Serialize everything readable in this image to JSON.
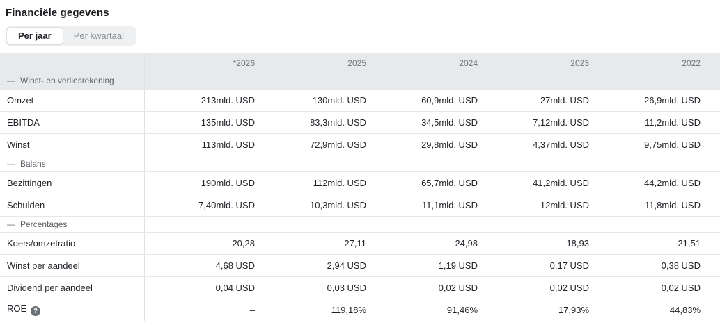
{
  "title": "Financiële gegevens",
  "tabs": {
    "per_jaar": "Per jaar",
    "per_kwartaal": "Per kwartaal"
  },
  "glyphs": {
    "collapse_dash": "—",
    "help": "?"
  },
  "table": {
    "columns": [
      "*2026",
      "2025",
      "2024",
      "2023",
      "2022"
    ],
    "sections": [
      {
        "label": "Winst- en verliesrekening",
        "rows": [
          {
            "label": "Omzet",
            "values": [
              "213mld. USD",
              "130mld. USD",
              "60,9mld. USD",
              "27mld. USD",
              "26,9mld. USD"
            ]
          },
          {
            "label": "EBITDA",
            "values": [
              "135mld. USD",
              "83,3mld. USD",
              "34,5mld. USD",
              "7,12mld. USD",
              "11,2mld. USD"
            ]
          },
          {
            "label": "Winst",
            "values": [
              "113mld. USD",
              "72,9mld. USD",
              "29,8mld. USD",
              "4,37mld. USD",
              "9,75mld. USD"
            ]
          }
        ]
      },
      {
        "label": "Balans",
        "rows": [
          {
            "label": "Bezittingen",
            "values": [
              "190mld. USD",
              "112mld. USD",
              "65,7mld. USD",
              "41,2mld. USD",
              "44,2mld. USD"
            ]
          },
          {
            "label": "Schulden",
            "values": [
              "7,40mld. USD",
              "10,3mld. USD",
              "11,1mld. USD",
              "12mld. USD",
              "11,8mld. USD"
            ]
          }
        ]
      },
      {
        "label": "Percentages",
        "rows": [
          {
            "label": "Koers/omzetratio",
            "values": [
              "20,28",
              "27,11",
              "24,98",
              "18,93",
              "21,51"
            ]
          },
          {
            "label": "Winst per aandeel",
            "values": [
              "4,68 USD",
              "2,94 USD",
              "1,19 USD",
              "0,17 USD",
              "0,38 USD"
            ]
          },
          {
            "label": "Dividend per aandeel",
            "values": [
              "0,04 USD",
              "0,03 USD",
              "0,02 USD",
              "0,02 USD",
              "0,02 USD"
            ]
          },
          {
            "label": "ROE",
            "has_help_icon": true,
            "values": [
              "–",
              "119,18%",
              "91,46%",
              "17,93%",
              "44,83%"
            ]
          }
        ]
      }
    ]
  },
  "colors": {
    "header_bg": "#e8e9eb",
    "row_border": "#e6e7e9",
    "column_divider": "#dfe1e4",
    "text_dark": "#1f2227",
    "text_gray": "#6e737b",
    "section_label": "#5d6268",
    "tab_container_bg": "#eef0f2",
    "tab_active_bg": "#ffffff",
    "tab_inactive_text": "#878d95",
    "help_icon_bg": "#6b7077"
  }
}
